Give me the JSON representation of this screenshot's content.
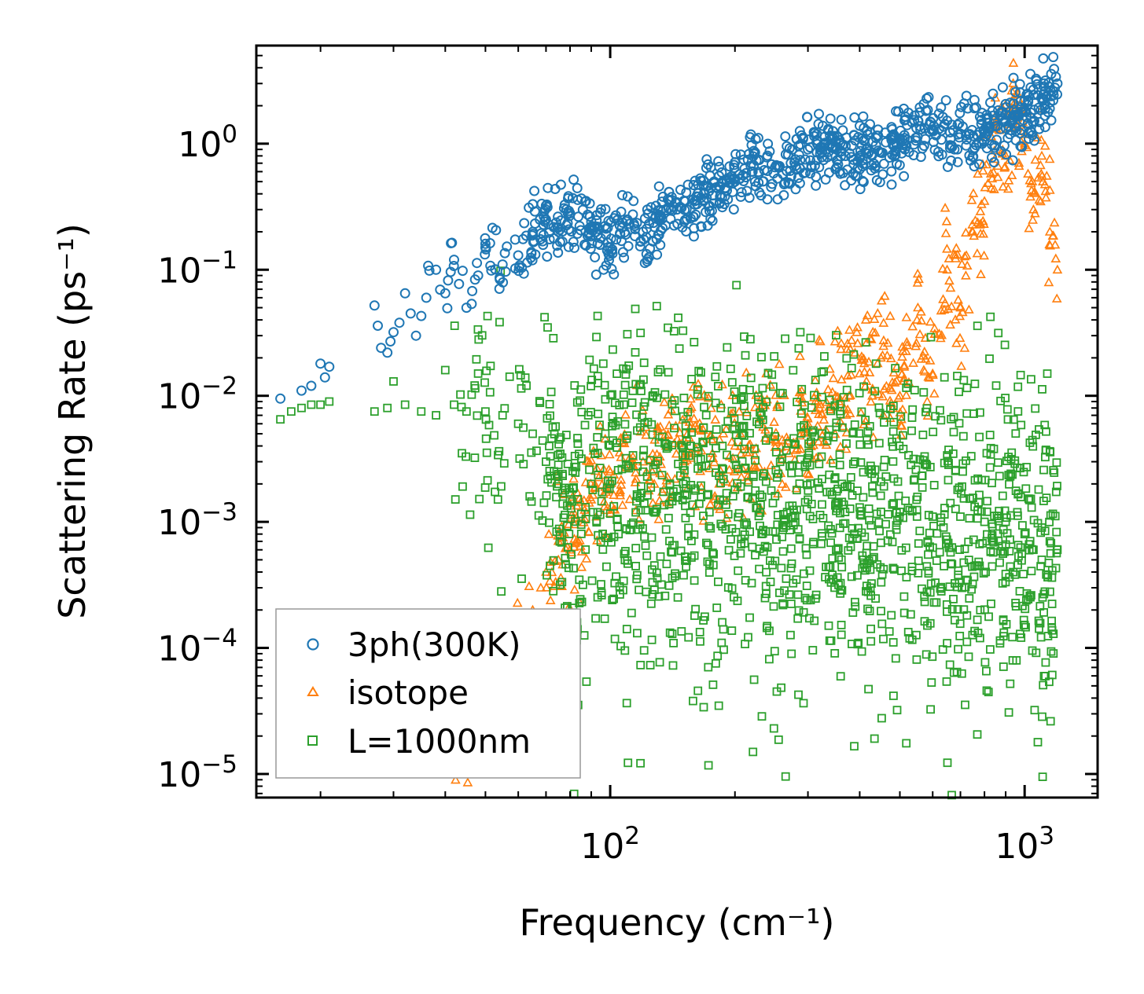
{
  "chart_data": {
    "type": "scatter",
    "title": "",
    "xlabel": "Frequency (cm⁻¹)",
    "ylabel": "Scattering Rate (ps⁻¹)",
    "xscale": "log",
    "yscale": "log",
    "xlim": [
      14,
      1500
    ],
    "ylim": [
      6.5e-06,
      6
    ],
    "grid": false,
    "legend_position": "bottom-left",
    "x_ticks": [
      {
        "value": 100,
        "base": "10",
        "exp": "2"
      },
      {
        "value": 1000,
        "base": "10",
        "exp": "3"
      }
    ],
    "y_ticks": [
      {
        "value": 1,
        "base": "10",
        "exp": "0"
      },
      {
        "value": 0.1,
        "base": "10",
        "exp": "−1"
      },
      {
        "value": 0.01,
        "base": "10",
        "exp": "−2"
      },
      {
        "value": 0.001,
        "base": "10",
        "exp": "−3"
      },
      {
        "value": 0.0001,
        "base": "10",
        "exp": "−4"
      },
      {
        "value": 1e-05,
        "base": "10",
        "exp": "−5"
      }
    ],
    "series": [
      {
        "name": "3ph(300K)",
        "marker": "circle",
        "color": "#1f77b4",
        "x": [
          16,
          18,
          19,
          20,
          20.5,
          21,
          27,
          27.5,
          28,
          29,
          29.5,
          30,
          31,
          32,
          33,
          34,
          35,
          36,
          38,
          40,
          42,
          45,
          48,
          50,
          55,
          60,
          65,
          70,
          75,
          80,
          90,
          100,
          110,
          120,
          140,
          160,
          180,
          200,
          220,
          250,
          280,
          300,
          350,
          400,
          450,
          500,
          600,
          700,
          800,
          900,
          1000,
          1100,
          1200
        ],
        "y": [
          0.0095,
          0.011,
          0.012,
          0.018,
          0.014,
          0.017,
          0.052,
          0.036,
          0.024,
          0.022,
          0.027,
          0.032,
          0.038,
          0.065,
          0.045,
          0.03,
          0.043,
          0.06,
          0.1,
          0.065,
          0.12,
          0.05,
          0.09,
          0.15,
          0.11,
          0.13,
          0.2,
          0.25,
          0.2,
          0.28,
          0.22,
          0.15,
          0.25,
          0.2,
          0.3,
          0.35,
          0.45,
          0.5,
          0.6,
          0.65,
          0.75,
          0.9,
          0.95,
          0.8,
          0.85,
          1.1,
          1.3,
          1.2,
          1.3,
          1.5,
          1.8,
          2.3,
          3.0
        ]
      },
      {
        "name": "isotope",
        "marker": "triangle",
        "color": "#ff7f0e",
        "x": [
          40,
          42,
          45,
          48,
          50,
          52,
          55,
          58,
          60,
          62,
          65,
          68,
          70,
          75,
          80,
          90,
          100,
          120,
          150,
          200,
          250,
          300,
          350,
          400,
          450,
          500,
          550,
          600,
          650,
          700,
          750,
          800,
          850,
          900,
          950,
          1000,
          1050,
          1100,
          1150,
          1200
        ],
        "y": [
          1e-05,
          1.3e-05,
          1.8e-05,
          2.5e-05,
          3.2e-05,
          4e-05,
          5.5e-05,
          7e-05,
          0.0001,
          0.00014,
          0.0002,
          0.0003,
          0.0004,
          0.0005,
          0.0006,
          0.0015,
          0.0025,
          0.003,
          0.004,
          0.004,
          0.0045,
          0.006,
          0.01,
          0.015,
          0.02,
          0.01,
          0.04,
          0.015,
          0.1,
          0.05,
          0.2,
          0.35,
          1.5,
          0.8,
          2.0,
          1.0,
          0.3,
          0.8,
          0.2,
          0.1
        ]
      },
      {
        "name": "L=1000nm",
        "marker": "square",
        "color": "#2ca02c",
        "x": [
          16,
          17,
          18,
          19,
          20,
          21,
          27,
          29,
          30,
          32,
          35,
          38,
          40,
          42,
          45,
          48,
          50,
          55,
          60,
          65,
          70,
          75,
          80,
          90,
          100,
          120,
          150,
          200,
          250,
          300,
          350,
          400,
          450,
          500,
          600,
          700,
          800,
          900,
          1000,
          1050,
          1100,
          1150,
          1200
        ],
        "y": [
          0.0065,
          0.0075,
          0.008,
          0.0085,
          0.0085,
          0.009,
          0.0075,
          0.008,
          0.013,
          0.0085,
          0.0075,
          0.007,
          0.016,
          0.0085,
          0.0075,
          0.015,
          0.0075,
          0.007,
          0.006,
          0.005,
          0.003,
          0.002,
          0.0015,
          0.002,
          0.002,
          0.0025,
          0.002,
          0.0018,
          0.0016,
          0.0015,
          0.0014,
          0.0013,
          0.0012,
          0.0012,
          0.0011,
          0.0011,
          0.001,
          0.001,
          0.0008,
          0.0006,
          0.0005,
          0.0007,
          0.0006
        ]
      }
    ]
  }
}
